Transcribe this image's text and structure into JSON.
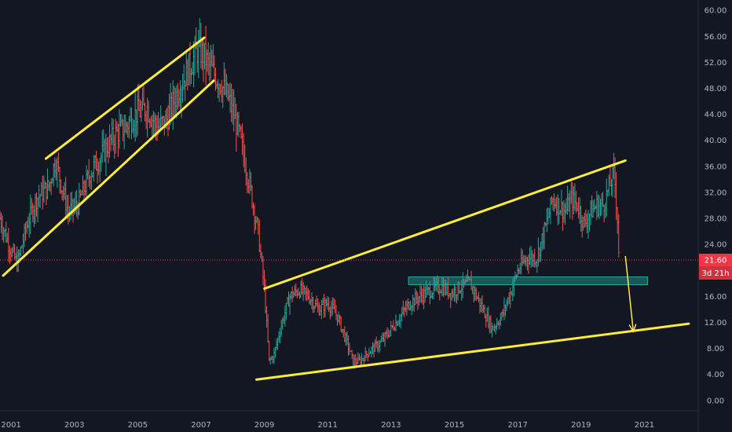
{
  "chart_data": {
    "type": "bar",
    "style": "ohlc-bars",
    "title": "",
    "xlabel": "",
    "ylabel": "",
    "xlim": [
      2000.65,
      2022.7
    ],
    "ylim": [
      -1.6,
      61.6
    ],
    "grid": false,
    "y_ticks": [
      {
        "value": 60,
        "label": "60.00"
      },
      {
        "value": 56,
        "label": "56.00"
      },
      {
        "value": 52,
        "label": "52.00"
      },
      {
        "value": 48,
        "label": "48.00"
      },
      {
        "value": 44,
        "label": "44.00"
      },
      {
        "value": 40,
        "label": "40.00"
      },
      {
        "value": 36,
        "label": "36.00"
      },
      {
        "value": 32,
        "label": "32.00"
      },
      {
        "value": 28,
        "label": "28.00"
      },
      {
        "value": 24,
        "label": "24.00"
      },
      {
        "value": 16,
        "label": "16.00"
      },
      {
        "value": 12,
        "label": "12.00"
      },
      {
        "value": 8,
        "label": "8.00"
      },
      {
        "value": 4,
        "label": "4.00"
      },
      {
        "value": 0,
        "label": "0.00"
      }
    ],
    "x_ticks": [
      {
        "value": 2001,
        "label": "2001"
      },
      {
        "value": 2003,
        "label": "2003"
      },
      {
        "value": 2005,
        "label": "2005"
      },
      {
        "value": 2007,
        "label": "2007"
      },
      {
        "value": 2009,
        "label": "2009"
      },
      {
        "value": 2011,
        "label": "2011"
      },
      {
        "value": 2013,
        "label": "2013"
      },
      {
        "value": 2015,
        "label": "2015"
      },
      {
        "value": 2017,
        "label": "2017"
      },
      {
        "value": 2019,
        "label": "2019"
      },
      {
        "value": 2021,
        "label": "2021"
      }
    ],
    "price_path": [
      [
        2000.65,
        28
      ],
      [
        2001.0,
        23
      ],
      [
        2001.2,
        21
      ],
      [
        2001.5,
        27
      ],
      [
        2001.8,
        31
      ],
      [
        2002.2,
        33
      ],
      [
        2002.4,
        37
      ],
      [
        2002.6,
        33
      ],
      [
        2002.8,
        29
      ],
      [
        2003.1,
        30
      ],
      [
        2003.5,
        35
      ],
      [
        2003.9,
        38
      ],
      [
        2004.3,
        41
      ],
      [
        2004.6,
        42
      ],
      [
        2004.9,
        44
      ],
      [
        2005.3,
        45
      ],
      [
        2005.6,
        42
      ],
      [
        2005.9,
        43
      ],
      [
        2006.3,
        48
      ],
      [
        2006.6,
        51
      ],
      [
        2006.9,
        54
      ],
      [
        2007.1,
        53
      ],
      [
        2007.3,
        51
      ],
      [
        2007.6,
        49
      ],
      [
        2007.9,
        46
      ],
      [
        2008.2,
        41
      ],
      [
        2008.5,
        34
      ],
      [
        2008.8,
        26
      ],
      [
        2009.0,
        17
      ],
      [
        2009.15,
        6
      ],
      [
        2009.3,
        7
      ],
      [
        2009.5,
        11
      ],
      [
        2009.8,
        16
      ],
      [
        2010.1,
        17
      ],
      [
        2010.4,
        16
      ],
      [
        2010.7,
        14
      ],
      [
        2011.0,
        15
      ],
      [
        2011.3,
        13
      ],
      [
        2011.6,
        9
      ],
      [
        2011.8,
        6
      ],
      [
        2012.0,
        6
      ],
      [
        2012.3,
        7.5
      ],
      [
        2012.7,
        9
      ],
      [
        2013.0,
        11
      ],
      [
        2013.3,
        13
      ],
      [
        2013.6,
        15
      ],
      [
        2013.9,
        16
      ],
      [
        2014.3,
        17
      ],
      [
        2014.6,
        17.5
      ],
      [
        2014.9,
        16.5
      ],
      [
        2015.2,
        17.5
      ],
      [
        2015.5,
        18
      ],
      [
        2015.8,
        15
      ],
      [
        2016.0,
        13
      ],
      [
        2016.2,
        11
      ],
      [
        2016.5,
        13
      ],
      [
        2016.8,
        17
      ],
      [
        2017.0,
        20
      ],
      [
        2017.3,
        22
      ],
      [
        2017.6,
        22
      ],
      [
        2017.9,
        27
      ],
      [
        2018.1,
        31
      ],
      [
        2018.3,
        30
      ],
      [
        2018.5,
        29
      ],
      [
        2018.7,
        31
      ],
      [
        2018.9,
        30
      ],
      [
        2019.1,
        27
      ],
      [
        2019.3,
        29
      ],
      [
        2019.5,
        30
      ],
      [
        2019.7,
        30
      ],
      [
        2019.9,
        33
      ],
      [
        2020.05,
        35
      ],
      [
        2020.15,
        28
      ],
      [
        2020.2,
        21.6
      ]
    ],
    "current_price": {
      "value": 21.6,
      "label": "21.60",
      "countdown": "3d 21h",
      "color": "#f23645"
    },
    "drawings": {
      "trendlines": [
        {
          "from": [
            2002.1,
            37.2
          ],
          "to": [
            2007.1,
            55.8
          ],
          "color": "#ffeb3b"
        },
        {
          "from": [
            2000.75,
            19.2
          ],
          "to": [
            2007.4,
            49.2
          ],
          "color": "#ffeb3b"
        },
        {
          "from": [
            2009.0,
            17.2
          ],
          "to": [
            2020.4,
            36.9
          ],
          "color": "#ffeb3b"
        },
        {
          "from": [
            2008.75,
            3.2
          ],
          "to": [
            2022.4,
            11.8
          ],
          "color": "#ffeb3b"
        }
      ],
      "arrow": {
        "from": [
          2020.4,
          22.2
        ],
        "to": [
          2020.65,
          10.6
        ],
        "color": "#ffeb3b"
      },
      "zone": {
        "x": [
          2013.55,
          2021.1
        ],
        "y": [
          17.8,
          19.0
        ],
        "color": "#26a69a"
      }
    },
    "colors": {
      "background": "#131722",
      "up_bar": "#26a69a",
      "down_bar": "#ef5350",
      "axis_text": "#b2b5be",
      "price_line": "#f23645"
    }
  }
}
